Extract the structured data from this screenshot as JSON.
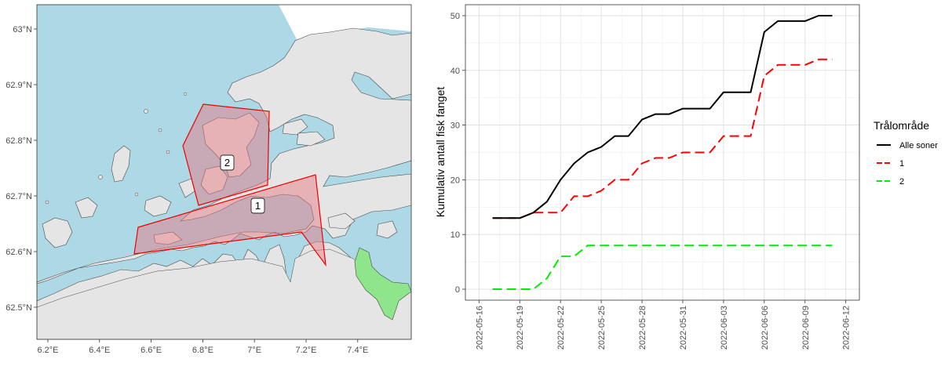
{
  "colors": {
    "sea": "#add8e6",
    "land": "#e5e5e5",
    "zone_fill": "#e6737a",
    "zone_stroke": "#ee0000",
    "series_alle": "#000000",
    "series_1": "#ff0000",
    "series_2": "#00ee00",
    "green_area": "#8ee58b"
  },
  "map": {
    "lat_ticks": [
      {
        "value": 63.0,
        "label": "63°N"
      },
      {
        "value": 62.9,
        "label": "62.9°N"
      },
      {
        "value": 62.8,
        "label": "62.8°N"
      },
      {
        "value": 62.7,
        "label": "62.7°N"
      },
      {
        "value": 62.6,
        "label": "62.6°N"
      },
      {
        "value": 62.5,
        "label": "62.5°N"
      }
    ],
    "lon_ticks": [
      {
        "value": 6.2,
        "label": "6.2°E"
      },
      {
        "value": 6.4,
        "label": "6.4°E"
      },
      {
        "value": 6.6,
        "label": "6.6°E"
      },
      {
        "value": 6.8,
        "label": "6.8°E"
      },
      {
        "value": 7.0,
        "label": "7°E"
      },
      {
        "value": 7.2,
        "label": "7.2°E"
      },
      {
        "value": 7.4,
        "label": "7.4°E"
      }
    ],
    "zone_labels": {
      "zone1": "1",
      "zone2": "2"
    }
  },
  "chart_data": {
    "type": "line",
    "title": "",
    "xlabel": "",
    "ylabel": "Kumulativ antall fisk fanget",
    "xlim": [
      "2022-05-15",
      "2022-06-13"
    ],
    "ylim": [
      -2,
      52
    ],
    "yticks": [
      0,
      10,
      20,
      30,
      40,
      50
    ],
    "x_tick_labels": [
      "2022-05-16",
      "2022-05-19",
      "2022-05-22",
      "2022-05-25",
      "2022-05-28",
      "2022-05-31",
      "2022-06-03",
      "2022-06-06",
      "2022-06-09",
      "2022-06-12"
    ],
    "x_tick_days": [
      1,
      4,
      7,
      10,
      13,
      16,
      19,
      22,
      25,
      28
    ],
    "x_days_origin": "2022-05-15",
    "legend": {
      "title": "Trålområde",
      "position": "right"
    },
    "series": [
      {
        "name": "Alle soner",
        "dash": "solid",
        "x_days": [
          2,
          3,
          4,
          5,
          6,
          7,
          8,
          9,
          10,
          11,
          12,
          13,
          14,
          15,
          16,
          17,
          18,
          19,
          20,
          21,
          22,
          23,
          24,
          25,
          26,
          27
        ],
        "values": [
          13,
          13,
          13,
          14,
          16,
          20,
          23,
          25,
          26,
          28,
          28,
          31,
          32,
          32,
          33,
          33,
          33,
          36,
          36,
          36,
          47,
          49,
          49,
          49,
          50,
          50
        ]
      },
      {
        "name": "1",
        "dash": "dashed",
        "x_days": [
          2,
          3,
          4,
          5,
          6,
          7,
          8,
          9,
          10,
          11,
          12,
          13,
          14,
          15,
          16,
          17,
          18,
          19,
          20,
          21,
          22,
          23,
          24,
          25,
          26,
          27
        ],
        "values": [
          13,
          13,
          13,
          14,
          14,
          14,
          17,
          17,
          18,
          20,
          20,
          23,
          24,
          24,
          25,
          25,
          25,
          28,
          28,
          28,
          39,
          41,
          41,
          41,
          42,
          42
        ]
      },
      {
        "name": "2",
        "dash": "dashed",
        "x_days": [
          2,
          3,
          4,
          5,
          6,
          7,
          8,
          9,
          10,
          11,
          12,
          13,
          14,
          15,
          16,
          17,
          18,
          19,
          20,
          21,
          22,
          23,
          24,
          25,
          26,
          27
        ],
        "values": [
          0,
          0,
          0,
          0,
          2,
          6,
          6,
          8,
          8,
          8,
          8,
          8,
          8,
          8,
          8,
          8,
          8,
          8,
          8,
          8,
          8,
          8,
          8,
          8,
          8,
          8
        ]
      }
    ]
  }
}
